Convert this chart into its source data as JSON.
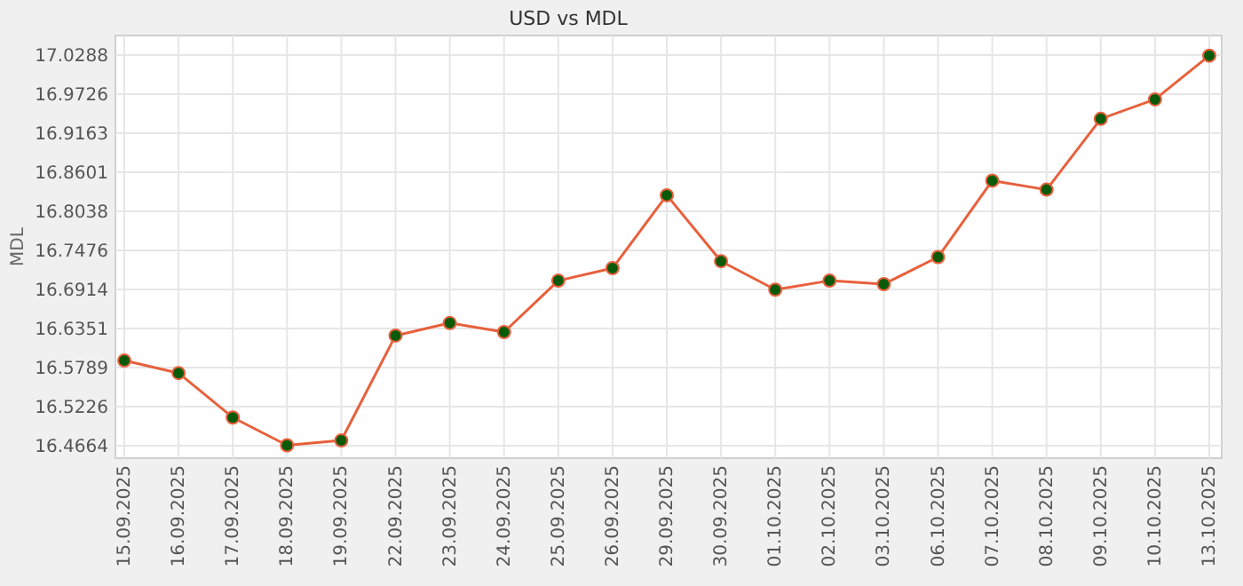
{
  "chart_data": {
    "type": "line",
    "title": "USD vs MDL",
    "ylabel": "MDL",
    "categories": [
      "15.09.2025",
      "16.09.2025",
      "17.09.2025",
      "18.09.2025",
      "19.09.2025",
      "22.09.2025",
      "23.09.2025",
      "24.09.2025",
      "25.09.2025",
      "26.09.2025",
      "29.09.2025",
      "30.09.2025",
      "01.10.2025",
      "02.10.2025",
      "03.10.2025",
      "06.10.2025",
      "07.10.2025",
      "08.10.2025",
      "09.10.2025",
      "10.10.2025",
      "13.10.2025"
    ],
    "series": [
      {
        "color": "#e8603c",
        "values": [
          16.589,
          16.571,
          16.507,
          16.467,
          16.474,
          16.625,
          16.643,
          16.63,
          16.704,
          16.722,
          16.827,
          16.732,
          16.691,
          16.704,
          16.699,
          16.738,
          16.848,
          16.835,
          16.937,
          16.965,
          17.028
        ]
      }
    ],
    "ylim": [
      16.4664,
      17.0288
    ],
    "yticks": [
      16.4664,
      16.5226,
      16.5789,
      16.6351,
      16.6914,
      16.7476,
      16.8038,
      16.8601,
      16.9163,
      16.9726,
      17.0288
    ],
    "grid": true,
    "marker": "circle",
    "line_style": "solid"
  }
}
